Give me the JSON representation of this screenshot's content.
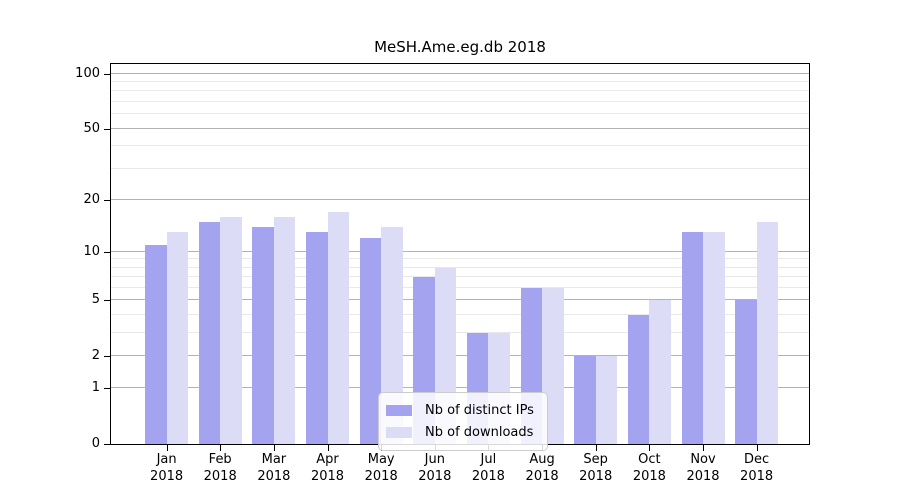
{
  "title": "MeSH.Ame.eg.db 2018",
  "chart_data": {
    "type": "bar",
    "title": "MeSH.Ame.eg.db 2018",
    "categories": [
      "Jan",
      "Feb",
      "Mar",
      "Apr",
      "May",
      "Jun",
      "Jul",
      "Aug",
      "Sep",
      "Oct",
      "Nov",
      "Dec"
    ],
    "year_label": "2018",
    "series": [
      {
        "name": "Nb of distinct IPs",
        "color": "#a3a3ef",
        "values": [
          11,
          15,
          14,
          13,
          12,
          7,
          3,
          6,
          2,
          4,
          13,
          5
        ]
      },
      {
        "name": "Nb of downloads",
        "color": "#dcdcf7",
        "values": [
          13,
          16,
          16,
          17,
          14,
          8,
          3,
          6,
          2,
          5,
          13,
          15
        ]
      }
    ],
    "xlabel": "",
    "ylabel": "",
    "yscale": "log1p",
    "ylim": [
      0,
      113
    ],
    "y_major_ticks": [
      0,
      1,
      2,
      5,
      10,
      20,
      50,
      100
    ],
    "y_minor_gridlines": [
      3,
      4,
      6,
      7,
      8,
      9,
      30,
      40,
      60,
      70,
      80,
      90
    ],
    "grid": true,
    "legend_position": "lower-center"
  },
  "colors": {
    "background": "#ffffff",
    "axis": "#000000",
    "text": "#000000",
    "major_grid": "#b3b3b3",
    "minor_grid": "#e9e9e9",
    "legend_bg": "rgba(255,255,255,0.85)",
    "legend_border": "#cccccc"
  }
}
